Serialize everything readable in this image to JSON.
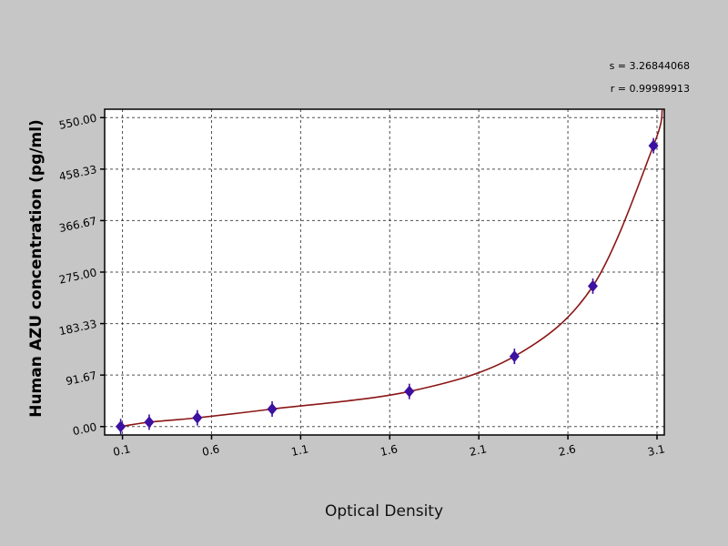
{
  "chart_data": {
    "type": "scatter",
    "title": "",
    "xlabel": "Optical Density",
    "ylabel": "Human AZU concentration (pg/ml)",
    "annotations": [
      "s = 3.26844068",
      "r = 0.99989913"
    ],
    "legend": false,
    "grid": true,
    "x_range": [
      0.0,
      3.141
    ],
    "y_range": [
      -15,
      565
    ],
    "x_ticks": [
      0.1,
      0.6,
      1.1,
      1.6,
      2.1,
      2.6,
      3.1
    ],
    "x_tick_labels": [
      "0.1",
      "0.6",
      "1.1",
      "1.6",
      "2.1",
      "2.6",
      "3.1"
    ],
    "y_ticks": [
      0,
      91.67,
      183.33,
      275.0,
      366.67,
      458.33,
      550.0
    ],
    "y_tick_labels": [
      "0.00",
      "91.67",
      "183.33",
      "275.00",
      "366.67",
      "458.33",
      "550.00"
    ],
    "points": [
      {
        "x": 0.09,
        "y": 0
      },
      {
        "x": 0.25,
        "y": 7.8
      },
      {
        "x": 0.52,
        "y": 15.6
      },
      {
        "x": 0.94,
        "y": 31.2
      },
      {
        "x": 1.71,
        "y": 62.5
      },
      {
        "x": 2.3,
        "y": 125
      },
      {
        "x": 2.74,
        "y": 250
      },
      {
        "x": 3.08,
        "y": 500
      }
    ],
    "curve_extension": {
      "x": 3.13,
      "y": 565
    },
    "marker_style": "diamond",
    "colors": {
      "background": "#c6c6c6",
      "plot_bg": "#ffffff",
      "grid": "#222222",
      "border": "#000000",
      "curve": "#8b1616",
      "marker": "#3c10a0",
      "text": "#000000"
    }
  }
}
